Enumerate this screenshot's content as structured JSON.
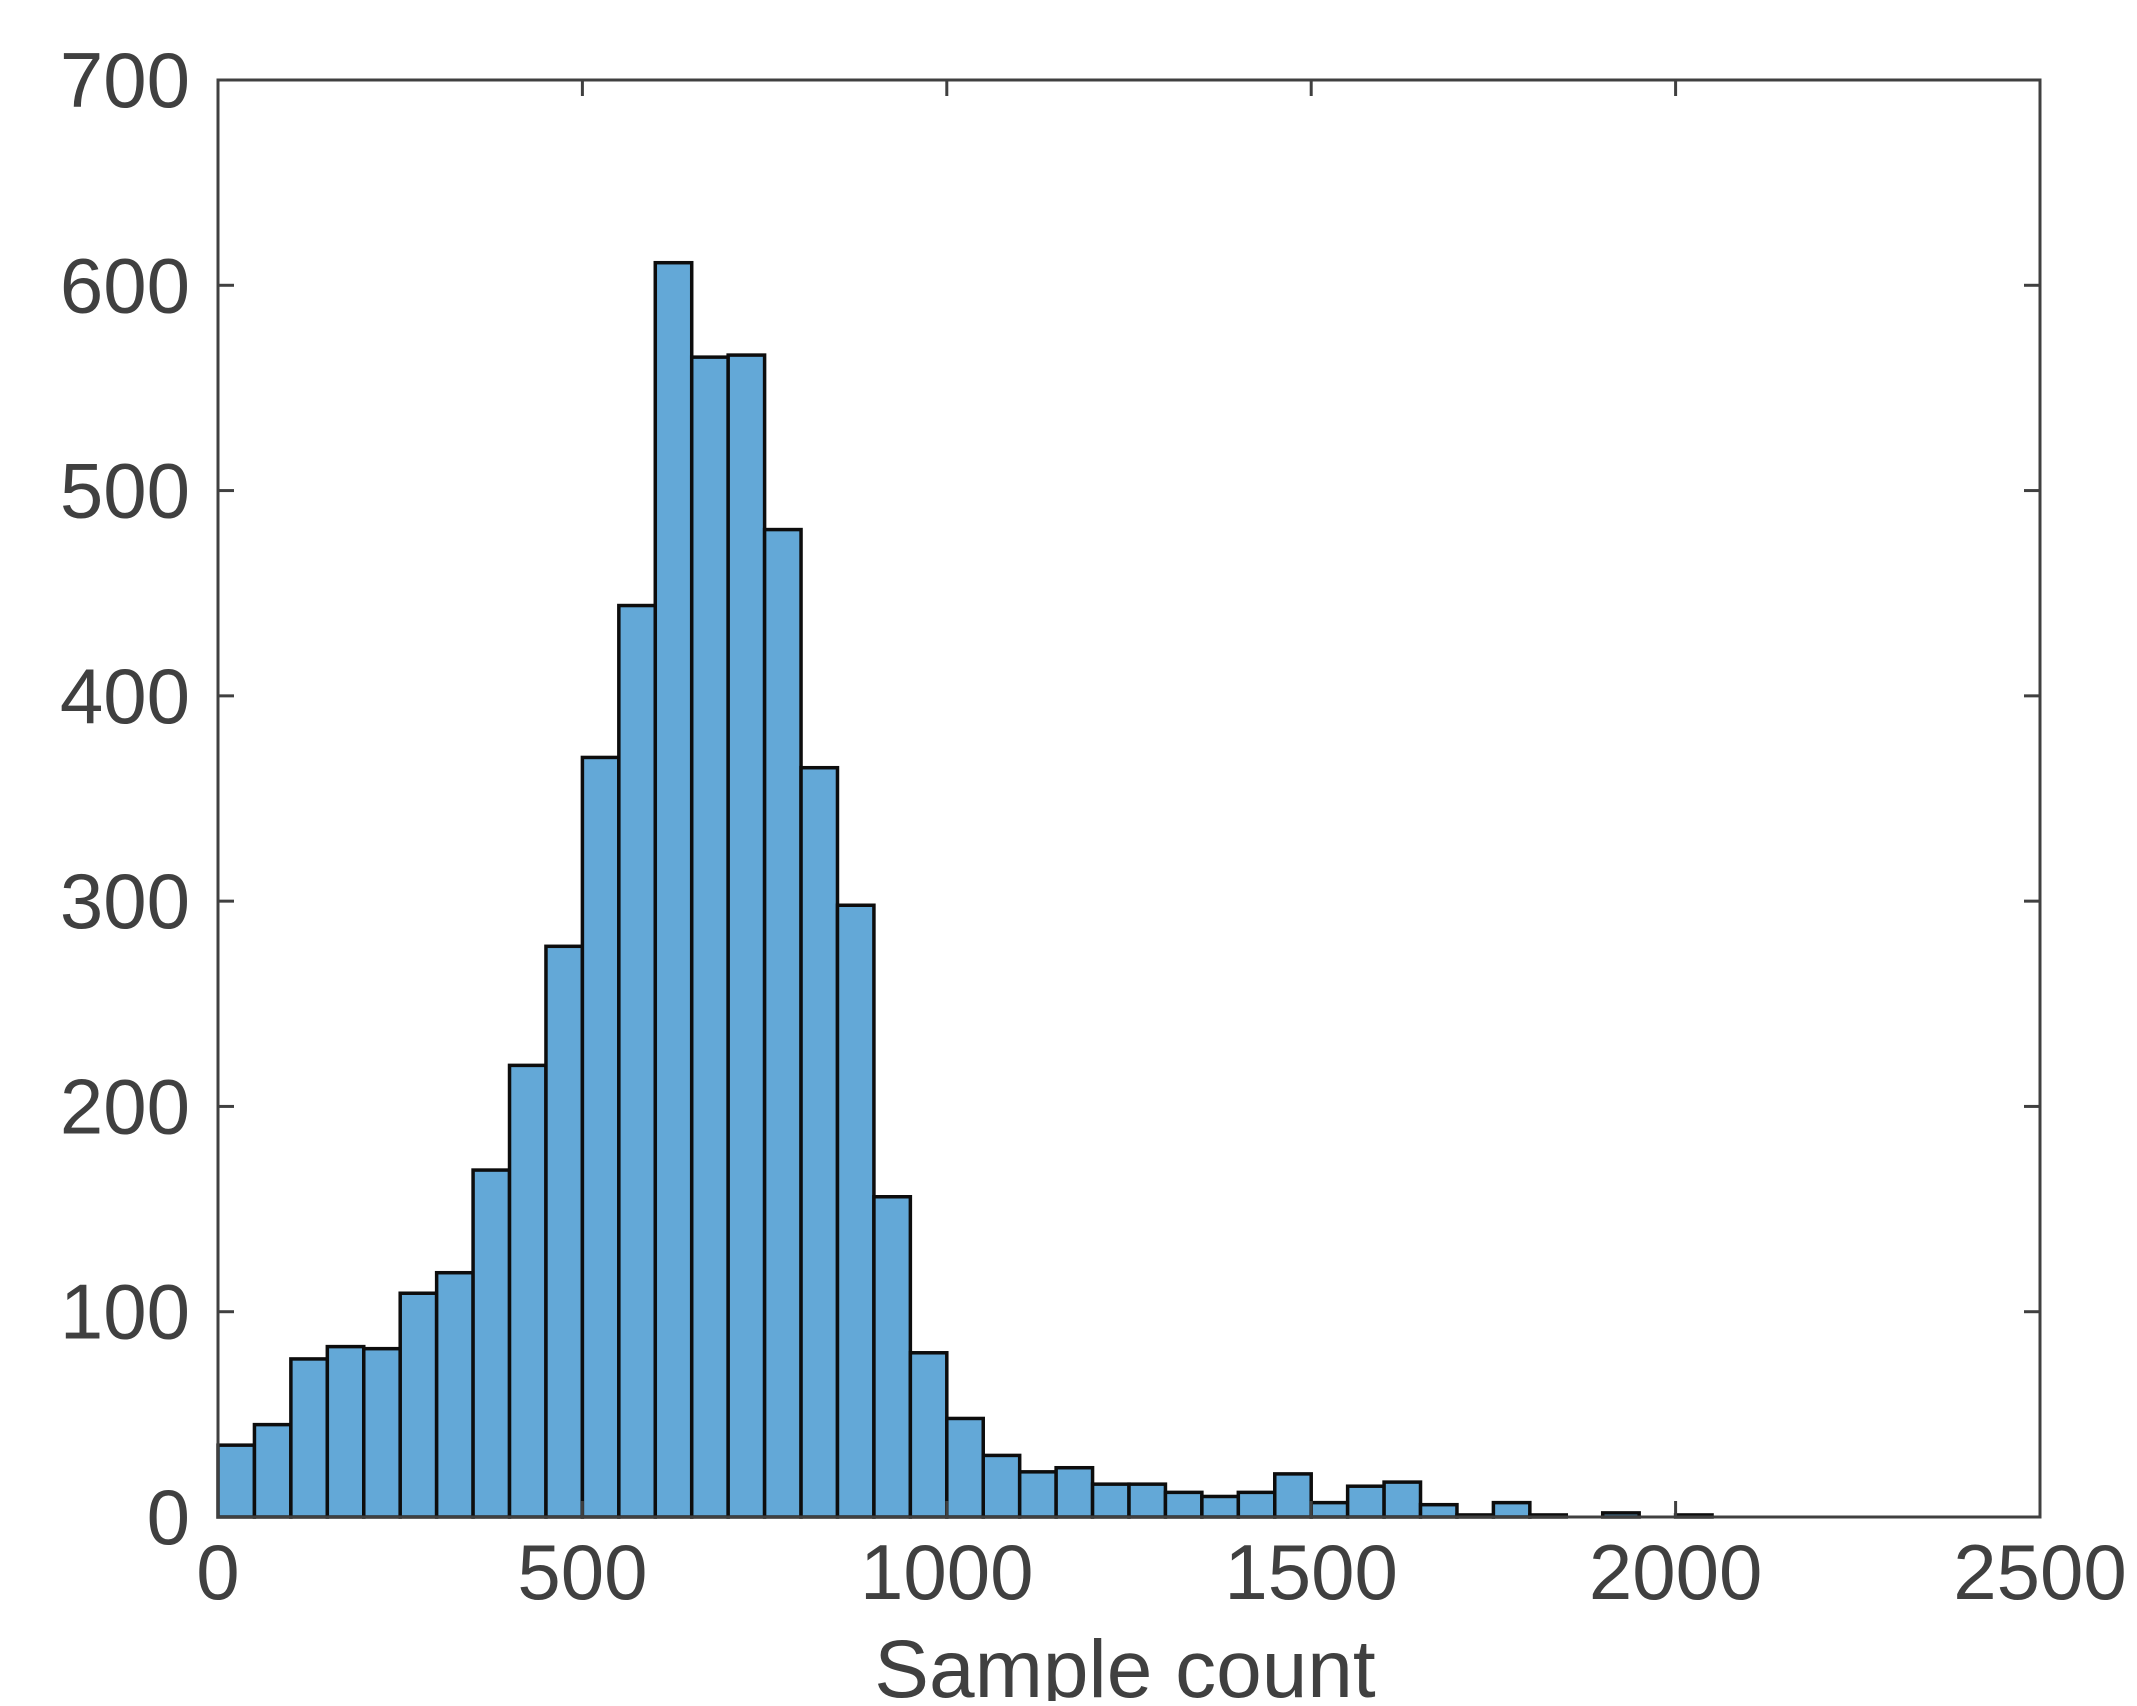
{
  "chart_data": {
    "type": "bar",
    "subtype": "histogram",
    "title": "",
    "xlabel": "Sample count",
    "ylabel": "",
    "xlim": [
      0,
      2500
    ],
    "ylim": [
      0,
      700
    ],
    "xticks": [
      0,
      500,
      1000,
      1500,
      2000,
      2500
    ],
    "yticks": [
      0,
      100,
      200,
      300,
      400,
      500,
      600,
      700
    ],
    "grid": false,
    "legend": "none",
    "bin_width": 50,
    "bin_edges_start": 0,
    "values": [
      35,
      45,
      77,
      83,
      82,
      109,
      119,
      169,
      220,
      278,
      370,
      444,
      611,
      565,
      566,
      481,
      365,
      298,
      156,
      80,
      48,
      30,
      22,
      24,
      16,
      16,
      12,
      10,
      12,
      21,
      7,
      15,
      17,
      6,
      1,
      7,
      1,
      0,
      2,
      0,
      1,
      0,
      0,
      0,
      0,
      0,
      0,
      0,
      0,
      0
    ],
    "colors": {
      "bar_fill": "#63a8d7",
      "bar_edge": "#0d0d0d",
      "axis": "#404040",
      "text": "#404040"
    }
  }
}
